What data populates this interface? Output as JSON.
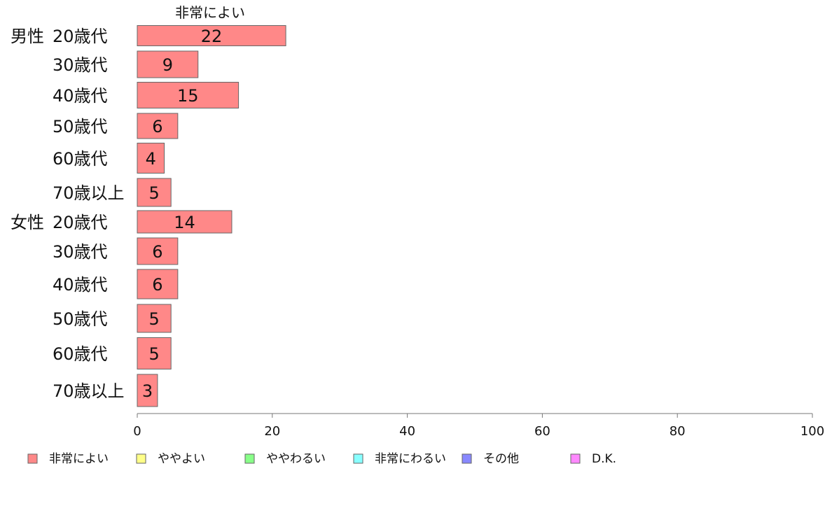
{
  "chart_data": {
    "type": "bar",
    "orientation": "horizontal",
    "title": "非常によい",
    "groups": [
      {
        "label": "男性",
        "rows": [
          {
            "label": "20歳代",
            "value": 22
          },
          {
            "label": "30歳代",
            "value": 9
          },
          {
            "label": "40歳代",
            "value": 15
          },
          {
            "label": "50歳代",
            "value": 6
          },
          {
            "label": "60歳代",
            "value": 4
          },
          {
            "label": "70歳以上",
            "value": 5
          }
        ]
      },
      {
        "label": "女性",
        "rows": [
          {
            "label": "20歳代",
            "value": 14
          },
          {
            "label": "30歳代",
            "value": 6
          },
          {
            "label": "40歳代",
            "value": 6
          },
          {
            "label": "50歳代",
            "value": 5
          },
          {
            "label": "60歳代",
            "value": 5
          },
          {
            "label": "70歳以上",
            "value": 3
          }
        ]
      }
    ],
    "xlim": [
      0,
      100
    ],
    "xticks": [
      0,
      20,
      40,
      60,
      80,
      100
    ],
    "bar_color": "#ff8888",
    "legend_position": "bottom",
    "legend": [
      {
        "name": "非常によい",
        "color": "#ff8888"
      },
      {
        "name": "ややよい",
        "color": "#ffff88"
      },
      {
        "name": "ややわるい",
        "color": "#88ff88"
      },
      {
        "name": "非常にわるい",
        "color": "#88ffff"
      },
      {
        "name": "その他",
        "color": "#8888ff"
      },
      {
        "name": "D.K.",
        "color": "#ff88ff"
      }
    ]
  }
}
